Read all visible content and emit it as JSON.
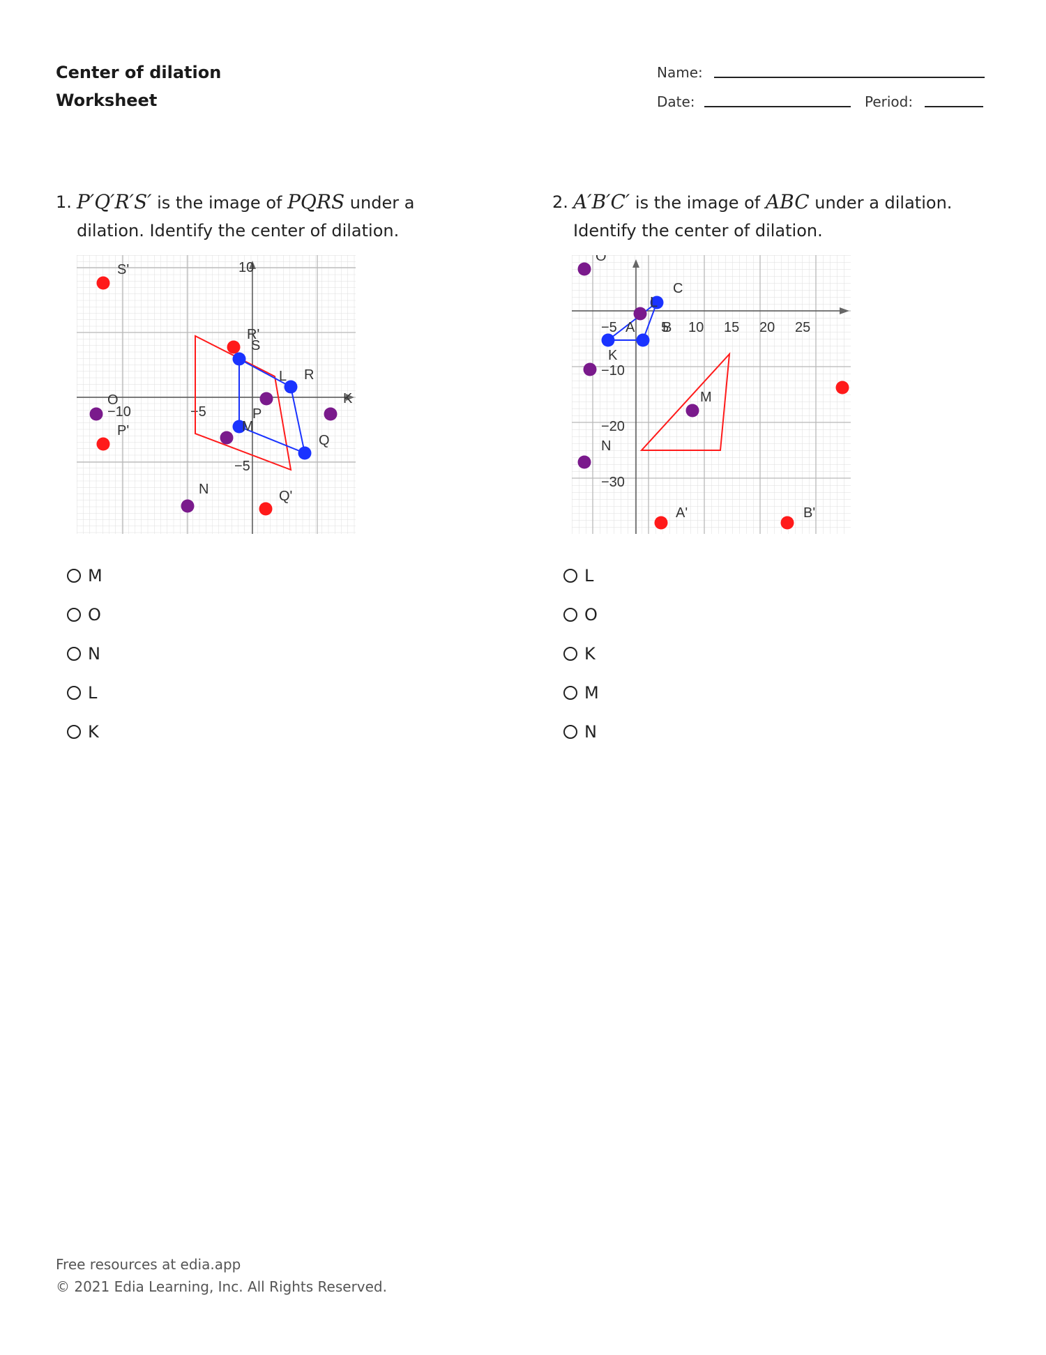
{
  "header": {
    "title_line1": "Center of dilation",
    "title_line2": "Worksheet",
    "name_label": "Name:",
    "date_label": "Date:",
    "period_label": "Period:"
  },
  "q1": {
    "number": "1.",
    "math_image": "P′Q′R′S′",
    "text_a": " is the image of ",
    "math_pre": "PQRS",
    "text_b": " under a dilation. Identify the center of dilation.",
    "choices": [
      "M",
      "O",
      "N",
      "L",
      "K"
    ],
    "graph": {
      "x_tick_labels": [
        "−10",
        "−5"
      ],
      "y_tick_labels": [
        "10",
        "−5"
      ],
      "point_labels": {
        "S_prime": "S'",
        "P_prime": "P'",
        "Q_prime": "Q'",
        "R_prime": "R'",
        "P": "P",
        "Q": "Q",
        "R": "R",
        "S": "S",
        "K": "K",
        "L": "L",
        "M": "M",
        "N": "N",
        "O": "O"
      }
    }
  },
  "q2": {
    "number": "2.",
    "math_image": "A′B′C′",
    "text_a": " is the image of ",
    "math_pre": "ABC",
    "text_b": " under a dilation. Identify the center of dilation.",
    "choices": [
      "L",
      "O",
      "K",
      "M",
      "N"
    ],
    "graph": {
      "x_tick_labels": [
        "−5",
        "5",
        "10",
        "15",
        "20",
        "25"
      ],
      "y_tick_labels": [
        "−10",
        "−20",
        "−30"
      ],
      "point_labels": {
        "A": "A",
        "B": "B",
        "C": "C",
        "A_prime": "A'",
        "B_prime": "B'",
        "K": "K",
        "L": "L",
        "M": "M",
        "N": "N",
        "O": "O"
      }
    }
  },
  "colors": {
    "image": "#ff1a1a",
    "preimage": "#1a33ff",
    "candidate": "#7a1a8c"
  },
  "footer": {
    "line1": "Free resources at edia.app",
    "line2": "© 2021 Edia Learning, Inc. All Rights Reserved."
  }
}
